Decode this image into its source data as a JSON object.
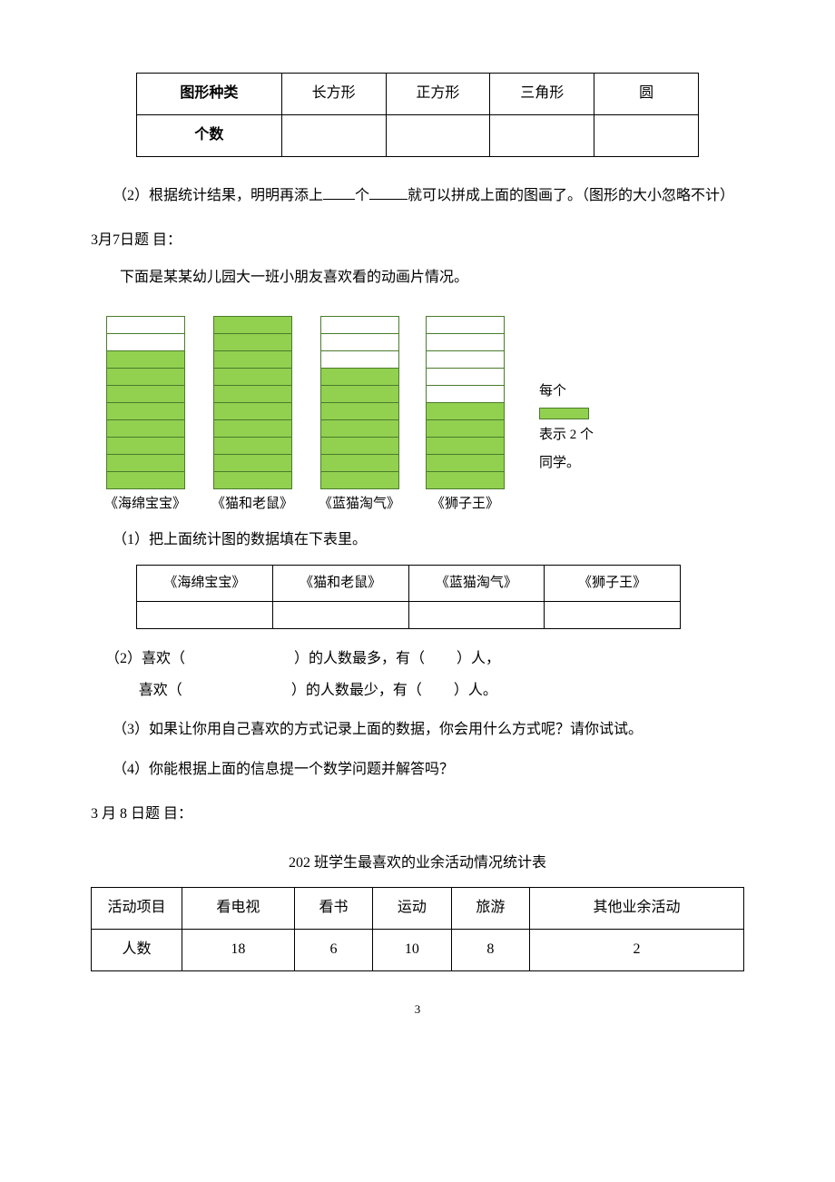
{
  "shape_table": {
    "header_label": "图形种类",
    "row_label": "个数",
    "columns": [
      "长方形",
      "正方形",
      "三角形",
      "圆"
    ]
  },
  "q2_text_before": "（2）根据统计结果，明明再添上",
  "q2_text_mid": "个",
  "q2_text_after": "就可以拼成上面的图画了。（图形的大小忽略不计）",
  "march7": {
    "heading": "3月7日题  目：",
    "intro": "下面是某某幼儿园大一班小朋友喜欢看的动画片情况。",
    "chart": {
      "total_cells": 10,
      "bar_color": "#92d050",
      "border_color": "#4a7c2a",
      "bars": [
        {
          "label": "《海绵宝宝》",
          "filled": 8
        },
        {
          "label": "《猫和老鼠》",
          "filled": 10
        },
        {
          "label": "《蓝猫淘气》",
          "filled": 7
        },
        {
          "label": "《狮子王》",
          "filled": 5
        }
      ],
      "legend_top": "每个",
      "legend_bottom1": "表示 2 个",
      "legend_bottom2": "同学。"
    },
    "q1": "（1）把上面统计图的数据填在下表里。",
    "cartoon_headers": [
      "《海绵宝宝》",
      "《猫和老鼠》",
      "《蓝猫淘气》",
      "《狮子王》"
    ],
    "q2_a": "（2）喜欢（",
    "q2_b": "）的人数最多，有（",
    "q2_c": "）人，",
    "q2_d": "喜欢（",
    "q2_e": "）的人数最少，有（",
    "q2_f": "）人。",
    "q3": "（3）如果让你用自己喜欢的方式记录上面的数据，你会用什么方式呢？请你试试。",
    "q4": "（4）你能根据上面的信息提一个数学问题并解答吗？"
  },
  "march8": {
    "heading": "3 月 8 日题      目：",
    "title": "202 班学生最喜欢的业余活动情况统计表",
    "header_label": "活动项目",
    "row_label": "人数",
    "columns": [
      "看电视",
      "看书",
      "运动",
      "旅游",
      "其他业余活动"
    ],
    "values": [
      "18",
      "6",
      "10",
      "8",
      "2"
    ]
  },
  "page_number": "3"
}
